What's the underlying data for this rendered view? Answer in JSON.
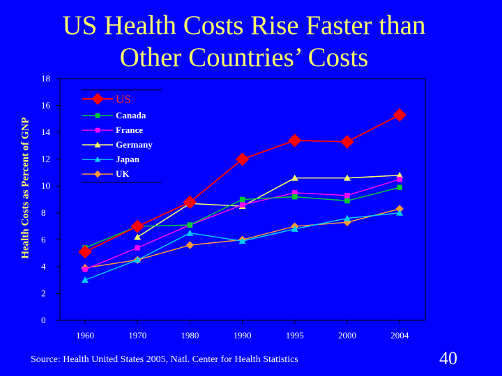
{
  "slide": {
    "title_line1": "US Health Costs Rise Faster than",
    "title_line2": "Other Countries’ Costs",
    "source": "Source: Health United States 2005, Natl. Center for Health Statistics",
    "number": "40"
  },
  "colors": {
    "background": "#0000ff",
    "title": "#ffff66",
    "axis_text": "#ffffff",
    "legend_bg": "#0000ff"
  },
  "chart_data": {
    "type": "line",
    "title": "US Health Costs Rise Faster than Other Countries’ Costs",
    "xlabel": "",
    "ylabel": "Health Costs as Percent of GNP",
    "ylim": [
      0,
      18
    ],
    "yticks": [
      0,
      2,
      4,
      6,
      8,
      10,
      12,
      14,
      16,
      18
    ],
    "categories": [
      "1960",
      "1970",
      "1980",
      "1990",
      "1995",
      "2000",
      "2004"
    ],
    "grid": false,
    "legend_position": "top-left",
    "series": [
      {
        "name": "US",
        "color": "#ff0000",
        "marker": "diamond",
        "values": [
          5.1,
          7.0,
          8.8,
          12.0,
          13.4,
          13.3,
          15.3
        ]
      },
      {
        "name": "Canada",
        "color": "#00cc33",
        "marker": "square",
        "values": [
          5.4,
          7.0,
          7.1,
          9.0,
          9.2,
          8.9,
          9.9
        ]
      },
      {
        "name": "France",
        "color": "#ff00ff",
        "marker": "square",
        "values": [
          3.8,
          5.4,
          7.1,
          8.6,
          9.5,
          9.3,
          10.5
        ]
      },
      {
        "name": "Germany",
        "color": "#ffff66",
        "marker": "triangle",
        "values": null,
        "values_display": [
          null,
          6.2,
          8.7,
          8.5,
          10.6,
          10.6,
          10.8
        ]
      },
      {
        "name": "Japan",
        "color": "#00ccff",
        "marker": "triangle",
        "values": [
          3.0,
          4.5,
          6.5,
          5.9,
          6.8,
          7.6,
          8.0
        ]
      },
      {
        "name": "UK",
        "color": "#ff9933",
        "marker": "diamond",
        "values": [
          3.9,
          4.5,
          5.6,
          6.0,
          7.0,
          7.3,
          8.3
        ]
      }
    ]
  }
}
